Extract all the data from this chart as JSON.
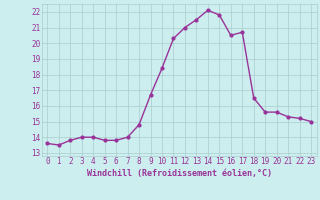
{
  "x": [
    0,
    1,
    2,
    3,
    4,
    5,
    6,
    7,
    8,
    9,
    10,
    11,
    12,
    13,
    14,
    15,
    16,
    17,
    18,
    19,
    20,
    21,
    22,
    23
  ],
  "y": [
    13.6,
    13.5,
    13.8,
    14.0,
    14.0,
    13.8,
    13.8,
    14.0,
    14.8,
    16.7,
    18.4,
    20.3,
    21.0,
    21.5,
    22.1,
    21.8,
    20.5,
    20.7,
    16.5,
    15.6,
    15.6,
    15.3,
    15.2,
    15.0
  ],
  "line_color": "#993399",
  "marker": "o",
  "marker_size": 2.0,
  "line_width": 1.0,
  "bg_color": "#cceeee",
  "grid_color": "#aacccc",
  "xlabel": "Windchill (Refroidissement éolien,°C)",
  "xlabel_color": "#993399",
  "xlabel_fontsize": 6.0,
  "tick_color": "#993399",
  "tick_fontsize": 5.5,
  "ytick_min": 13,
  "ytick_max": 22,
  "xtick_labels": [
    "0",
    "1",
    "2",
    "3",
    "4",
    "5",
    "6",
    "7",
    "8",
    "9",
    "10",
    "11",
    "12",
    "13",
    "14",
    "15",
    "16",
    "17",
    "18",
    "19",
    "20",
    "21",
    "22",
    "23"
  ],
  "ylim": [
    12.8,
    22.5
  ],
  "xlim": [
    -0.5,
    23.5
  ]
}
